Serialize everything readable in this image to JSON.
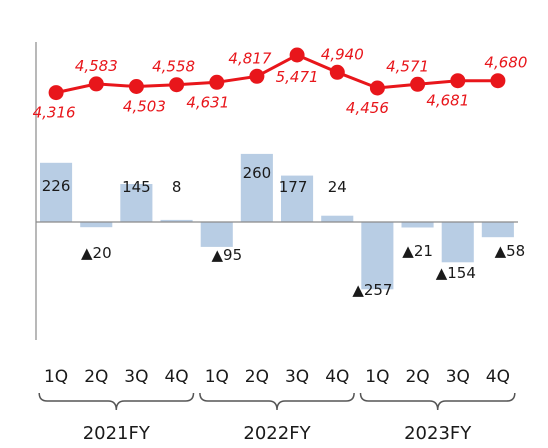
{
  "chart_data": {
    "type": "bar+line",
    "categories": [
      "1Q",
      "2Q",
      "3Q",
      "4Q",
      "1Q",
      "2Q",
      "3Q",
      "4Q",
      "1Q",
      "2Q",
      "3Q",
      "4Q"
    ],
    "groups": [
      {
        "label": "2021FY",
        "start": 0,
        "end": 3
      },
      {
        "label": "2022FY",
        "start": 4,
        "end": 7
      },
      {
        "label": "2023FY",
        "start": 8,
        "end": 11
      }
    ],
    "series": [
      {
        "type": "line",
        "color": "#e8161b",
        "values": [
          4316,
          4583,
          4503,
          4558,
          4631,
          4817,
          5471,
          4940,
          4456,
          4571,
          4681,
          4680
        ],
        "labels": [
          "4,316",
          "4,583",
          "4,503",
          "4,558",
          "4,631",
          "4,817",
          "5,471",
          "4,940",
          "4,456",
          "4,571",
          "4,681",
          "4,680"
        ]
      },
      {
        "type": "bar",
        "color": "#b8cde4",
        "values": [
          226,
          -20,
          145,
          8,
          -95,
          260,
          177,
          24,
          -257,
          -21,
          -154,
          -58
        ],
        "labels": [
          "226",
          "▲20",
          "145",
          "8",
          "▲95",
          "260",
          "177",
          "24",
          "▲257",
          "▲21",
          "▲154",
          "▲58"
        ]
      }
    ],
    "bar_ylim": [
      -400,
      260
    ],
    "line_ylim": [
      4200,
      5520
    ],
    "grid": false,
    "legend": "none"
  }
}
